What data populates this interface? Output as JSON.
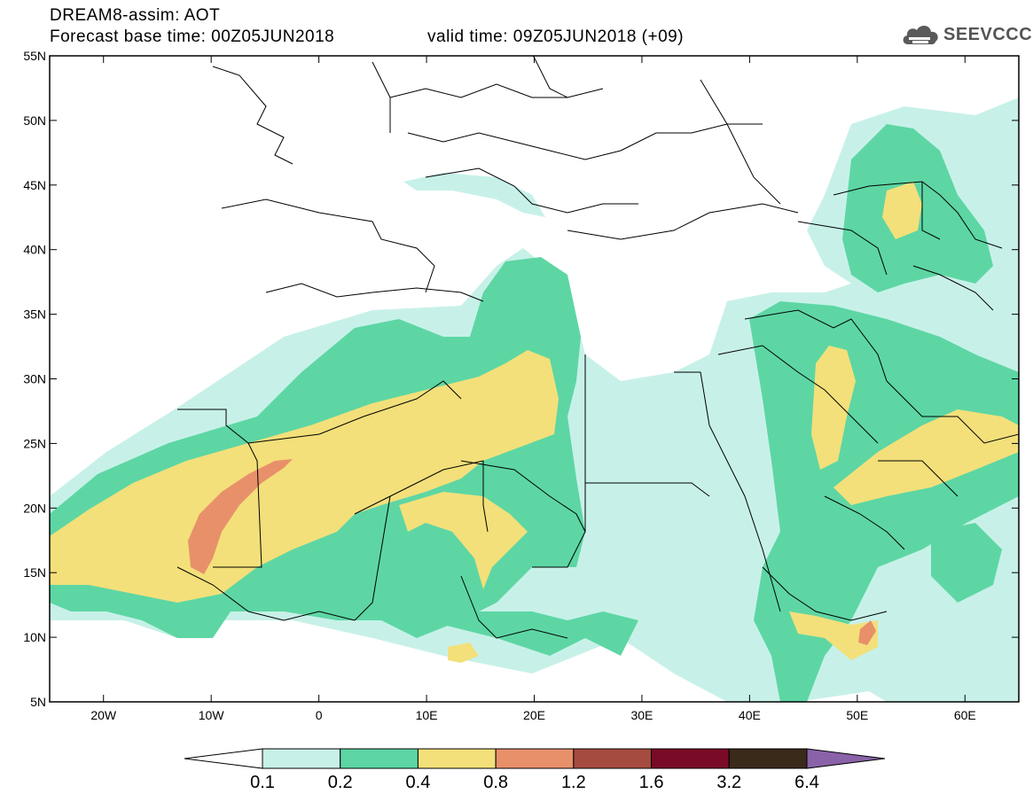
{
  "header": {
    "title": "DREAM8-assim: AOT",
    "base_time": "Forecast base time: 00Z05JUN2018",
    "valid_time": "valid time: 09Z05JUN2018 (+09)"
  },
  "logo": {
    "text": "SEEVCCC",
    "icon": "cloud-icon"
  },
  "map": {
    "lon_range": [
      -25,
      65
    ],
    "lat_range": [
      5,
      55
    ],
    "lat_ticks": [
      55,
      50,
      45,
      40,
      35,
      30,
      25,
      20,
      15,
      10,
      5
    ],
    "lat_labels": [
      "55N",
      "50N",
      "45N",
      "40N",
      "35N",
      "30N",
      "25N",
      "20N",
      "15N",
      "10N",
      "5N"
    ],
    "lon_ticks": [
      -20,
      -10,
      0,
      10,
      20,
      30,
      40,
      50,
      60
    ],
    "lon_labels": [
      "20W",
      "10W",
      "0",
      "10E",
      "20E",
      "30E",
      "40E",
      "50E",
      "60E"
    ]
  },
  "colorbar": {
    "labels": [
      "0.1",
      "0.2",
      "0.4",
      "0.8",
      "1.2",
      "1.6",
      "3.2",
      "6.4"
    ],
    "colors": [
      "#ffffff",
      "#c7f1e8",
      "#5dd6a4",
      "#f3e07a",
      "#e8906a",
      "#a64b40",
      "#7a0b26",
      "#3a2a1a",
      "#8a62a8"
    ]
  },
  "colors": {
    "aot_0_1": "#c7f1e8",
    "aot_0_2": "#5dd6a4",
    "aot_0_4": "#f3e07a",
    "aot_0_8": "#e8906a"
  }
}
